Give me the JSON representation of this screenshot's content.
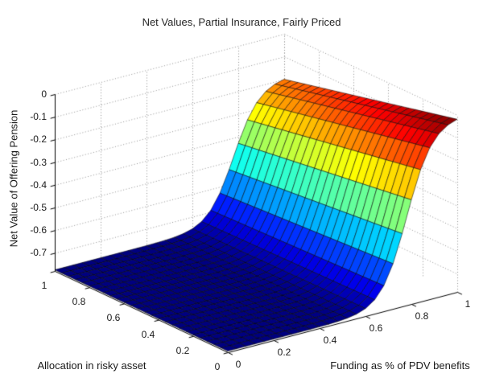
{
  "figure": {
    "background": "#ffffff",
    "text_color": "#1a1a1a",
    "grid_color": "#8f8f8f",
    "mesh_edge_color": "#000000"
  },
  "chart_data": {
    "type": "surface",
    "subtype": "3d-surface-matlab-jet",
    "title": "Net Values, Partial Insurance, Fairly Priced",
    "xlabel": "Funding as % of PDV benefits",
    "ylabel": "Allocation in risky asset",
    "zlabel": "Net Value of Offering Pension",
    "colormap": "jet",
    "grid": "dotted back walls",
    "view": "MATLAB default 3D (az -37.5, el 30)",
    "xlim": [
      0,
      1
    ],
    "ylim": [
      0,
      1
    ],
    "zlim": [
      -0.78,
      0
    ],
    "x_ticks": {
      "values": [
        0,
        0.2,
        0.4,
        0.6,
        0.8,
        1
      ],
      "labels": [
        "0",
        "0.2",
        "0.4",
        "0.6",
        "0.8",
        "1"
      ]
    },
    "y_ticks": {
      "values": [
        0,
        0.2,
        0.4,
        0.6,
        0.8,
        1
      ],
      "labels": [
        "0",
        "0.2",
        "0.4",
        "0.6",
        "0.8",
        "1"
      ]
    },
    "z_ticks": {
      "values": [
        0,
        -0.1,
        -0.2,
        -0.3,
        -0.4,
        -0.5,
        -0.6,
        -0.7
      ],
      "labels": [
        "0",
        "-0.1",
        "-0.2",
        "-0.3",
        "-0.4",
        "-0.5",
        "-0.6",
        "-0.7"
      ]
    },
    "surface_model": {
      "description": "Net value flat at z_flat for funding < ~0.55, then logistic rise; height of plateau decreases with allocation in risky asset",
      "grid_divisions": 25,
      "z_flat": -0.775,
      "z_asymptote_alloc0": -0.005,
      "z_asymptote_alloc1": -0.19,
      "rise_midpoint_funding": 0.78,
      "rise_width": 0.055
    },
    "x_samples": [
      0,
      0.1,
      0.2,
      0.3,
      0.4,
      0.5,
      0.6,
      0.7,
      0.8,
      0.9,
      1.0
    ],
    "series": [
      {
        "name": "allocation = 0",
        "values": [
          -0.775,
          -0.775,
          -0.775,
          -0.775,
          -0.774,
          -0.767,
          -0.734,
          -0.602,
          -0.321,
          -0.099,
          -0.019
        ]
      },
      {
        "name": "allocation = 0.5",
        "values": [
          -0.775,
          -0.775,
          -0.775,
          -0.775,
          -0.774,
          -0.768,
          -0.738,
          -0.62,
          -0.368,
          -0.17,
          -0.098
        ]
      },
      {
        "name": "allocation = 1",
        "values": [
          -0.775,
          -0.775,
          -0.775,
          -0.775,
          -0.774,
          -0.769,
          -0.743,
          -0.637,
          -0.416,
          -0.24,
          -0.177
        ]
      }
    ]
  }
}
